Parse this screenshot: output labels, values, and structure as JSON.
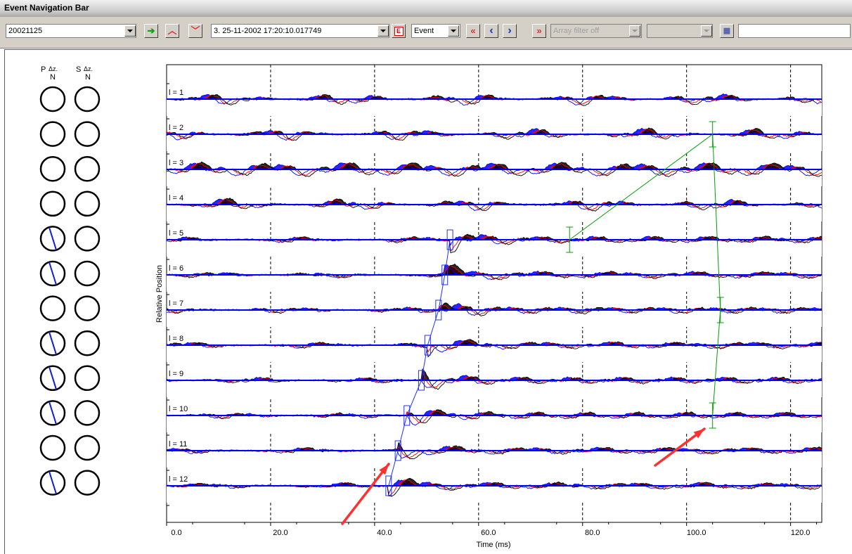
{
  "window": {
    "title": "Event Navigation Bar"
  },
  "toolbar": {
    "date_value": "20021125",
    "event_value": "3.  25-11-2002  17:20:10.017749",
    "event_badge": "E",
    "mode_value": "Event",
    "first_label": "«",
    "prev_label": "‹",
    "next_label": "›",
    "last_label": "»",
    "array_filter_value": "Array filter off",
    "empty_combo_value": "",
    "search_value": ""
  },
  "circles": {
    "p_label": "P",
    "s_label": "S",
    "az_label": "Δz.",
    "n_label": "N",
    "p_lines": [
      null,
      null,
      null,
      null,
      "tilt",
      "tilt",
      null,
      "tilt",
      "tilt",
      "tilt",
      null,
      "tilt"
    ]
  },
  "chart_data": {
    "type": "line",
    "title": "",
    "xlabel": "Time (ms)",
    "ylabel": "Relative Position",
    "xlim": [
      0,
      126
    ],
    "xticks": [
      0,
      20,
      40,
      60,
      80,
      100,
      120
    ],
    "xtick_labels": [
      "0.0",
      "20.0",
      "40.0",
      "60.0",
      "80.0",
      "100.0",
      "120.0"
    ],
    "grid_x": [
      20,
      40,
      60,
      80,
      100,
      120
    ],
    "traces": [
      "l = 1",
      "l = 2",
      "l = 3",
      "l = 4",
      "l = 5",
      "l = 6",
      "l = 7",
      "l = 8",
      "l = 9",
      "l = 10",
      "l = 11",
      "l = 12"
    ],
    "p_picks_ms": [
      null,
      null,
      null,
      null,
      54.5,
      53.5,
      52.3,
      50.2,
      49.0,
      46.2,
      44.5,
      42.7
    ],
    "s_picks_ms": [
      null,
      105.0,
      null,
      null,
      77.5,
      null,
      106.5,
      null,
      null,
      105.0,
      null,
      null
    ],
    "series_colors": {
      "trace_a": "#000000",
      "trace_b": "#ff0000",
      "trace_c": "#0000ff",
      "baseline": "#0000ff",
      "pick_s": "#00a000",
      "pick_p": "#2030ff",
      "arrow": "#ff3030"
    }
  }
}
